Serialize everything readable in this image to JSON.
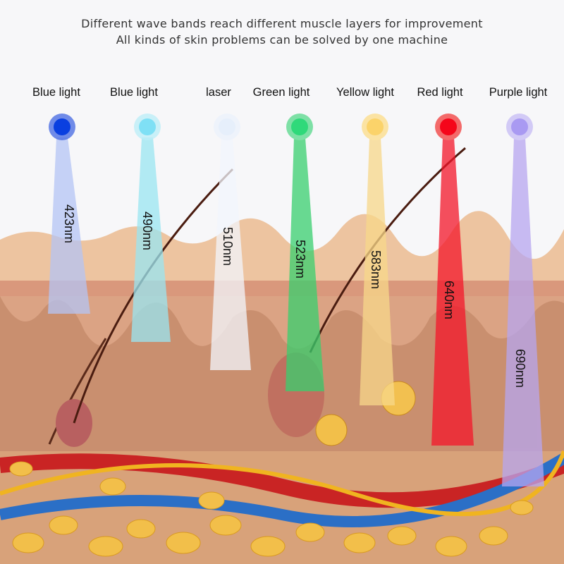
{
  "header": {
    "line1": "Different wave bands reach different muscle layers for improvement",
    "line2": "All kinds of skin problems can be solved by one machine"
  },
  "lights": [
    {
      "label": "Blue light",
      "wavelength": "423nm",
      "color": "#0a3fe0"
    },
    {
      "label": "Blue light",
      "wavelength": "490nm",
      "color": "#7fe0f5"
    },
    {
      "label": "laser",
      "wavelength": "510nm",
      "color": "#e6effb"
    },
    {
      "label": "Green light",
      "wavelength": "523nm",
      "color": "#2fd97a"
    },
    {
      "label": "Yellow light",
      "wavelength": "583nm",
      "color": "#fbd36a"
    },
    {
      "label": "Red light",
      "wavelength": "640nm",
      "color": "#f5061a"
    },
    {
      "label": "Purple light",
      "wavelength": "690nm",
      "color": "#a99af2"
    }
  ]
}
